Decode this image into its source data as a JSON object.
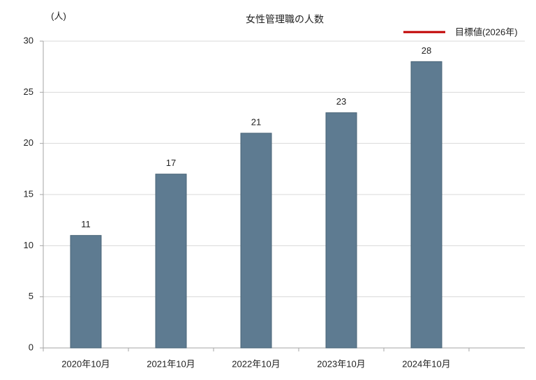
{
  "chart_data": {
    "type": "bar",
    "title": "女性管理職の人数",
    "y_unit_label": "(人)",
    "categories": [
      "2020年10月",
      "2021年10月",
      "2022年10月",
      "2023年10月",
      "2024年10月"
    ],
    "values": [
      11,
      17,
      21,
      23,
      28
    ],
    "color": "#5e7b91",
    "target": {
      "name": "目標値(2026年)",
      "color": "#c00000"
    },
    "ylim": [
      0,
      30
    ],
    "yticks": [
      0,
      5,
      10,
      15,
      20,
      25,
      30
    ],
    "grid": true
  }
}
